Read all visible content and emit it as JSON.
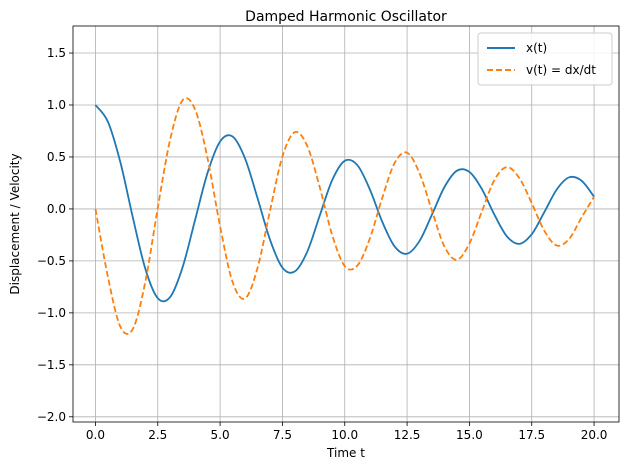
{
  "chart_data": {
    "type": "line",
    "title": "Damped Harmonic Oscillator",
    "xlabel": "Time t",
    "ylabel": "Displacement / Velocity",
    "xlim": [
      -0.9,
      21.0
    ],
    "ylim": [
      -2.05,
      1.76
    ],
    "xticks": [
      0.0,
      2.5,
      5.0,
      7.5,
      10.0,
      12.5,
      15.0,
      17.5,
      20.0
    ],
    "xtick_labels": [
      "0.0",
      "2.5",
      "5.0",
      "7.5",
      "10.0",
      "12.5",
      "15.0",
      "17.5",
      "20.0"
    ],
    "yticks": [
      -2.0,
      -1.5,
      -1.0,
      -0.5,
      0.0,
      0.5,
      1.0,
      1.5
    ],
    "ytick_labels": [
      "−2.0",
      "−1.5",
      "−1.0",
      "−0.5",
      "0.0",
      "0.5",
      "1.0",
      "1.5"
    ],
    "grid": true,
    "legend_position": "top-right",
    "series": [
      {
        "name": "x(t)",
        "color": "#1f77b4",
        "style": "solid",
        "x": [
          0.0,
          0.5,
          1.0,
          1.5,
          2.0,
          2.5,
          3.0,
          3.5,
          4.0,
          4.5,
          5.0,
          5.5,
          6.0,
          6.5,
          7.0,
          7.5,
          8.0,
          8.5,
          9.0,
          9.5,
          10.0,
          10.5,
          11.0,
          11.5,
          12.0,
          12.5,
          13.0,
          13.5,
          14.0,
          14.5,
          15.0,
          15.5,
          16.0,
          16.5,
          17.0,
          17.5,
          18.0,
          18.5,
          19.0,
          19.5,
          20.0
        ],
        "values": [
          1.0,
          0.839,
          0.449,
          -0.082,
          -0.575,
          -0.859,
          -0.847,
          -0.558,
          -0.103,
          0.35,
          0.649,
          0.697,
          0.486,
          0.105,
          -0.295,
          -0.565,
          -0.601,
          -0.409,
          -0.062,
          0.279,
          0.463,
          0.423,
          0.192,
          -0.121,
          -0.361,
          -0.431,
          -0.308,
          -0.054,
          0.211,
          0.368,
          0.356,
          0.191,
          -0.054,
          -0.263,
          -0.336,
          -0.243,
          -0.033,
          0.186,
          0.304,
          0.271,
          0.117
        ]
      },
      {
        "name": "v(t) = dx/dt",
        "color": "#ff7f0e",
        "style": "dashed",
        "x": [
          0.0,
          0.5,
          1.0,
          1.5,
          2.0,
          2.5,
          3.0,
          3.5,
          4.0,
          4.5,
          5.0,
          5.5,
          6.0,
          6.5,
          7.0,
          7.5,
          8.0,
          8.5,
          9.0,
          9.5,
          10.0,
          10.5,
          11.0,
          11.5,
          12.0,
          12.5,
          13.0,
          13.5,
          14.0,
          14.5,
          15.0,
          15.5,
          16.0,
          16.5,
          17.0,
          17.5,
          18.0,
          18.5,
          19.0,
          19.5,
          20.0
        ],
        "values": [
          0.0,
          -0.653,
          -1.133,
          -1.155,
          -0.702,
          0.01,
          0.671,
          1.047,
          0.955,
          0.483,
          -0.168,
          -0.702,
          -0.862,
          -0.569,
          -0.02,
          0.505,
          0.739,
          0.603,
          0.206,
          -0.254,
          -0.551,
          -0.547,
          -0.289,
          0.103,
          0.442,
          0.541,
          0.343,
          -0.018,
          -0.363,
          -0.489,
          -0.332,
          -0.024,
          0.277,
          0.402,
          0.298,
          0.056,
          -0.208,
          -0.352,
          -0.289,
          -0.082,
          0.117
        ]
      }
    ]
  }
}
